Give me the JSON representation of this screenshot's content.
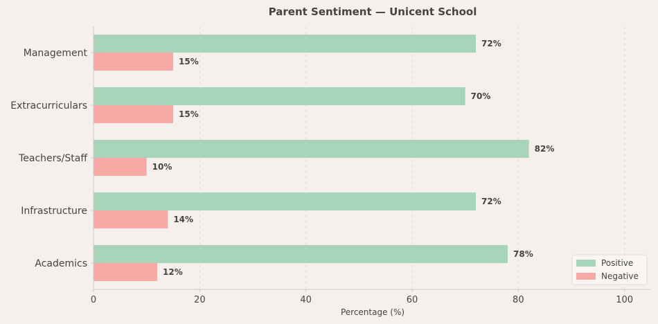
{
  "chart_data": {
    "type": "bar",
    "orientation": "horizontal",
    "title": "Parent Sentiment — Unicent School",
    "xlabel": "Percentage (%)",
    "ylabel": "",
    "xlim": [
      0,
      105
    ],
    "xticks": [
      0,
      20,
      40,
      60,
      80,
      100
    ],
    "grid": "x-dashed",
    "legend_position": "bottom-right",
    "categories": [
      "Management",
      "Extracurriculars",
      "Teachers/Staff",
      "Infrastructure",
      "Academics"
    ],
    "series": [
      {
        "name": "Positive",
        "color": "#a8d5b9",
        "values": [
          72,
          70,
          82,
          72,
          78
        ],
        "labels": [
          "72%",
          "70%",
          "82%",
          "72%",
          "78%"
        ]
      },
      {
        "name": "Negative",
        "color": "#f7a9a5",
        "values": [
          15,
          15,
          10,
          14,
          12
        ],
        "labels": [
          "15%",
          "15%",
          "10%",
          "14%",
          "12%"
        ]
      }
    ]
  }
}
